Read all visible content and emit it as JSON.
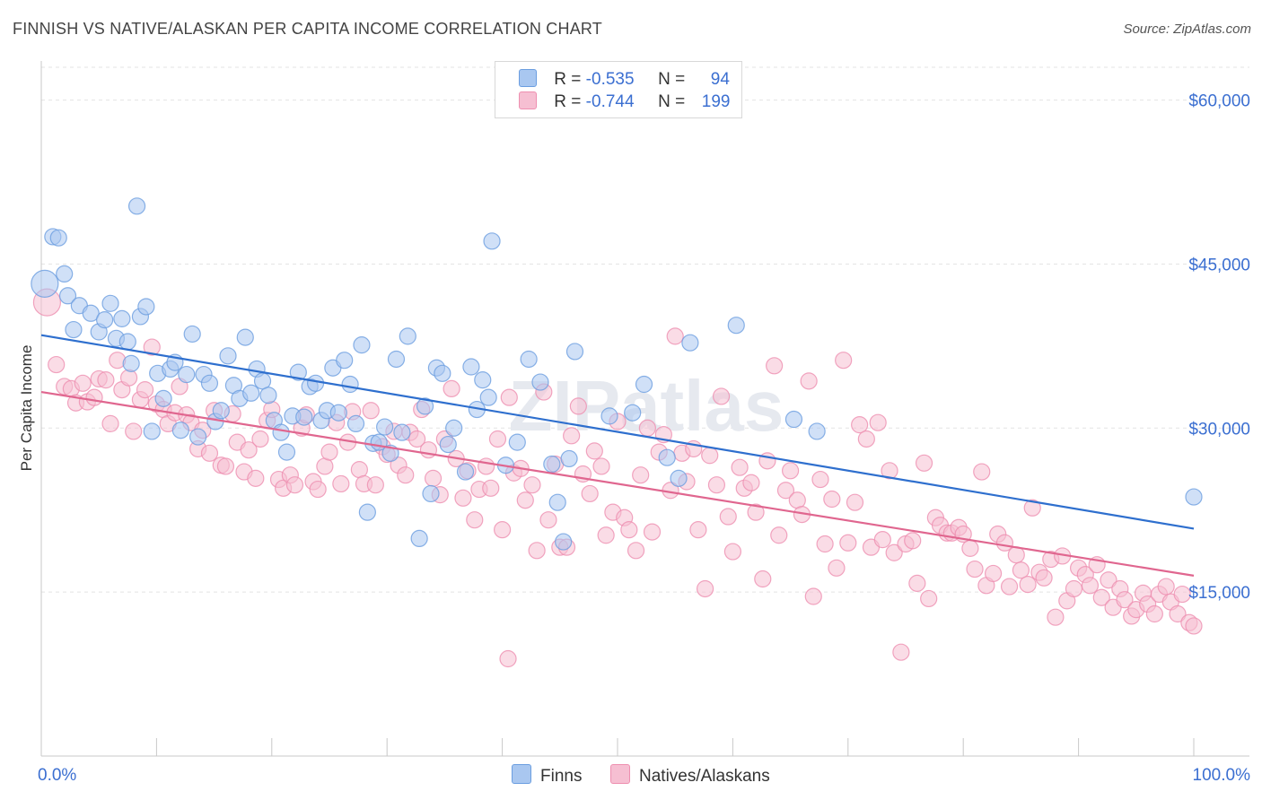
{
  "title": "FINNISH VS NATIVE/ALASKAN PER CAPITA INCOME CORRELATION CHART",
  "source": "Source: ZipAtlas.com",
  "watermark": "ZIPatlas",
  "legend": {
    "finns": {
      "r_label": "R =",
      "r_value": "-0.535",
      "n_label": "N =",
      "n_value": "94"
    },
    "natives": {
      "r_label": "R =",
      "r_value": "-0.744",
      "n_label": "N =",
      "n_value": "199"
    }
  },
  "colors": {
    "finns": "#6b9ee0",
    "finns_fill": "#a9c7f0",
    "finns_line": "#2e6fce",
    "natives": "#ee8fb0",
    "natives_fill": "#f6bfd2",
    "natives_line": "#e0668f",
    "tick_text": "#3b6fd1"
  },
  "chart_data": {
    "type": "scatter",
    "title": "FINNISH VS NATIVE/ALASKAN PER CAPITA INCOME CORRELATION CHART",
    "xlabel": "",
    "ylabel": "Per Capita Income",
    "xlim": [
      0,
      100
    ],
    "ylim": [
      0,
      63000
    ],
    "x_tick_labels": [
      "0.0%",
      "100.0%"
    ],
    "y_ticks": [
      15000,
      30000,
      45000,
      60000
    ],
    "y_tick_labels": [
      "$15,000",
      "$30,000",
      "$45,000",
      "$60,000"
    ],
    "grid": true,
    "legend_position": "bottom",
    "series": [
      {
        "name": "Finns",
        "trend": {
          "x0": 0,
          "y0": 38500,
          "x1": 100,
          "y1": 20800
        },
        "points": [
          [
            0.3,
            43200
          ],
          [
            1,
            47500
          ],
          [
            1.5,
            47400
          ],
          [
            2,
            44100
          ],
          [
            2.3,
            42100
          ],
          [
            2.8,
            39000
          ],
          [
            3.3,
            41200
          ],
          [
            4.3,
            40500
          ],
          [
            5,
            38800
          ],
          [
            5.5,
            39900
          ],
          [
            6,
            41400
          ],
          [
            6.5,
            38200
          ],
          [
            7,
            40000
          ],
          [
            7.5,
            37900
          ],
          [
            7.8,
            35900
          ],
          [
            8.3,
            50300
          ],
          [
            8.6,
            40200
          ],
          [
            9.1,
            41100
          ],
          [
            9.6,
            29700
          ],
          [
            10.1,
            35000
          ],
          [
            10.6,
            32700
          ],
          [
            11.2,
            35400
          ],
          [
            11.6,
            36000
          ],
          [
            12.1,
            29800
          ],
          [
            12.6,
            34900
          ],
          [
            13.1,
            38600
          ],
          [
            13.6,
            29200
          ],
          [
            14.1,
            34900
          ],
          [
            14.6,
            34100
          ],
          [
            15.1,
            30600
          ],
          [
            15.6,
            31600
          ],
          [
            16.2,
            36600
          ],
          [
            16.7,
            33900
          ],
          [
            17.2,
            32700
          ],
          [
            17.7,
            38300
          ],
          [
            18.2,
            33200
          ],
          [
            18.7,
            35400
          ],
          [
            19.2,
            34300
          ],
          [
            19.7,
            33000
          ],
          [
            20.2,
            30700
          ],
          [
            20.8,
            29600
          ],
          [
            21.3,
            27800
          ],
          [
            21.8,
            31100
          ],
          [
            22.3,
            35100
          ],
          [
            22.8,
            31000
          ],
          [
            23.3,
            33800
          ],
          [
            23.8,
            34100
          ],
          [
            24.3,
            30700
          ],
          [
            24.8,
            31600
          ],
          [
            25.3,
            35500
          ],
          [
            25.8,
            31400
          ],
          [
            26.3,
            36200
          ],
          [
            26.8,
            34000
          ],
          [
            27.3,
            30400
          ],
          [
            27.8,
            37600
          ],
          [
            28.3,
            22300
          ],
          [
            28.8,
            28600
          ],
          [
            29.3,
            28700
          ],
          [
            29.8,
            30100
          ],
          [
            30.3,
            27700
          ],
          [
            30.8,
            36300
          ],
          [
            31.3,
            29600
          ],
          [
            31.8,
            38400
          ],
          [
            32.8,
            19900
          ],
          [
            33.3,
            32000
          ],
          [
            33.8,
            24000
          ],
          [
            34.3,
            35500
          ],
          [
            34.8,
            35000
          ],
          [
            35.3,
            28500
          ],
          [
            35.8,
            30000
          ],
          [
            36.8,
            26000
          ],
          [
            37.3,
            35600
          ],
          [
            37.8,
            31700
          ],
          [
            38.3,
            34400
          ],
          [
            38.8,
            32800
          ],
          [
            39.1,
            47100
          ],
          [
            40.3,
            26600
          ],
          [
            41.3,
            28700
          ],
          [
            42.3,
            36300
          ],
          [
            43.3,
            34200
          ],
          [
            44.3,
            26700
          ],
          [
            44.8,
            23200
          ],
          [
            45.3,
            19600
          ],
          [
            45.8,
            27200
          ],
          [
            46.3,
            37000
          ],
          [
            49.3,
            31100
          ],
          [
            51.3,
            31400
          ],
          [
            52.3,
            34000
          ],
          [
            54.3,
            27300
          ],
          [
            55.3,
            25400
          ],
          [
            56.3,
            37800
          ],
          [
            60.3,
            39400
          ],
          [
            65.3,
            30800
          ],
          [
            67.3,
            29700
          ],
          [
            100,
            23700
          ]
        ]
      },
      {
        "name": "Natives/Alaskans",
        "trend": {
          "x0": 0,
          "y0": 33300,
          "x1": 100,
          "y1": 16500
        },
        "points": [
          [
            0.5,
            41500
          ],
          [
            1.3,
            35800
          ],
          [
            2,
            33800
          ],
          [
            2.6,
            33600
          ],
          [
            3,
            32300
          ],
          [
            3.6,
            34100
          ],
          [
            4,
            32400
          ],
          [
            4.6,
            32800
          ],
          [
            5,
            34500
          ],
          [
            5.6,
            34400
          ],
          [
            6,
            30400
          ],
          [
            6.6,
            36200
          ],
          [
            7,
            33500
          ],
          [
            7.6,
            34600
          ],
          [
            8,
            29700
          ],
          [
            8.6,
            32600
          ],
          [
            9,
            33500
          ],
          [
            9.6,
            37400
          ],
          [
            10,
            32200
          ],
          [
            10.6,
            31700
          ],
          [
            11,
            30400
          ],
          [
            11.6,
            31400
          ],
          [
            12,
            33800
          ],
          [
            12.6,
            31200
          ],
          [
            13,
            30500
          ],
          [
            13.6,
            28100
          ],
          [
            14,
            29800
          ],
          [
            14.6,
            27700
          ],
          [
            15,
            31600
          ],
          [
            15.6,
            26600
          ],
          [
            16,
            26500
          ],
          [
            16.6,
            31300
          ],
          [
            17,
            28700
          ],
          [
            17.6,
            26000
          ],
          [
            18,
            28000
          ],
          [
            18.6,
            25400
          ],
          [
            19,
            29000
          ],
          [
            19.6,
            30700
          ],
          [
            20,
            31700
          ],
          [
            20.6,
            25300
          ],
          [
            21,
            24500
          ],
          [
            21.6,
            25700
          ],
          [
            22,
            24800
          ],
          [
            22.6,
            30000
          ],
          [
            23,
            31200
          ],
          [
            23.6,
            25100
          ],
          [
            24,
            24400
          ],
          [
            24.6,
            26500
          ],
          [
            25,
            27800
          ],
          [
            25.6,
            30500
          ],
          [
            26,
            24900
          ],
          [
            26.6,
            28700
          ],
          [
            27,
            31500
          ],
          [
            27.6,
            26200
          ],
          [
            28,
            24900
          ],
          [
            28.6,
            31600
          ],
          [
            29,
            24800
          ],
          [
            29.6,
            28300
          ],
          [
            30,
            27600
          ],
          [
            30.6,
            29700
          ],
          [
            31,
            26600
          ],
          [
            31.6,
            25700
          ],
          [
            32,
            29600
          ],
          [
            32.6,
            29000
          ],
          [
            33,
            31700
          ],
          [
            33.6,
            28000
          ],
          [
            34,
            25400
          ],
          [
            34.6,
            23900
          ],
          [
            35,
            29000
          ],
          [
            35.6,
            33600
          ],
          [
            36,
            27200
          ],
          [
            36.6,
            23600
          ],
          [
            37,
            26100
          ],
          [
            37.6,
            21600
          ],
          [
            38,
            24400
          ],
          [
            38.6,
            26500
          ],
          [
            39,
            24500
          ],
          [
            39.6,
            29000
          ],
          [
            40,
            20700
          ],
          [
            40.6,
            32800
          ],
          [
            41,
            25900
          ],
          [
            41.6,
            26300
          ],
          [
            42,
            23400
          ],
          [
            42.6,
            24800
          ],
          [
            43,
            18800
          ],
          [
            43.6,
            33300
          ],
          [
            44,
            21600
          ],
          [
            44.6,
            26700
          ],
          [
            45,
            19100
          ],
          [
            45.6,
            19100
          ],
          [
            46,
            29300
          ],
          [
            46.6,
            32000
          ],
          [
            47,
            25800
          ],
          [
            47.6,
            24000
          ],
          [
            48,
            27900
          ],
          [
            48.6,
            26500
          ],
          [
            49,
            20200
          ],
          [
            49.6,
            22300
          ],
          [
            50,
            30600
          ],
          [
            50.6,
            21800
          ],
          [
            51,
            20700
          ],
          [
            51.6,
            18800
          ],
          [
            52,
            25700
          ],
          [
            52.6,
            30000
          ],
          [
            53,
            20500
          ],
          [
            53.6,
            27800
          ],
          [
            54,
            29400
          ],
          [
            54.6,
            24300
          ],
          [
            55,
            38400
          ],
          [
            55.6,
            27700
          ],
          [
            56,
            25100
          ],
          [
            56.6,
            28100
          ],
          [
            57,
            20700
          ],
          [
            57.6,
            15300
          ],
          [
            58,
            27500
          ],
          [
            58.6,
            24800
          ],
          [
            59,
            32900
          ],
          [
            59.6,
            21900
          ],
          [
            60,
            18700
          ],
          [
            60.6,
            26400
          ],
          [
            61,
            24500
          ],
          [
            61.6,
            25000
          ],
          [
            62,
            22300
          ],
          [
            62.6,
            16200
          ],
          [
            63,
            27000
          ],
          [
            63.6,
            35700
          ],
          [
            64,
            20200
          ],
          [
            64.6,
            24300
          ],
          [
            65,
            26100
          ],
          [
            65.6,
            23400
          ],
          [
            66,
            22100
          ],
          [
            66.6,
            34300
          ],
          [
            67,
            14600
          ],
          [
            67.6,
            25300
          ],
          [
            68,
            19400
          ],
          [
            68.6,
            23500
          ],
          [
            69,
            17200
          ],
          [
            69.6,
            36200
          ],
          [
            70,
            19500
          ],
          [
            70.6,
            23200
          ],
          [
            71,
            30300
          ],
          [
            71.6,
            29000
          ],
          [
            72,
            19100
          ],
          [
            72.6,
            30500
          ],
          [
            73,
            19800
          ],
          [
            73.6,
            26100
          ],
          [
            74,
            18600
          ],
          [
            74.6,
            9500
          ],
          [
            75,
            19400
          ],
          [
            75.6,
            19700
          ],
          [
            76,
            15800
          ],
          [
            76.6,
            26800
          ],
          [
            77,
            14400
          ],
          [
            77.6,
            21800
          ],
          [
            78,
            21100
          ],
          [
            78.6,
            20400
          ],
          [
            79,
            20400
          ],
          [
            79.6,
            20900
          ],
          [
            80,
            20300
          ],
          [
            80.6,
            19000
          ],
          [
            81,
            17100
          ],
          [
            81.6,
            26000
          ],
          [
            82,
            15600
          ],
          [
            82.6,
            16700
          ],
          [
            83,
            20300
          ],
          [
            83.6,
            19500
          ],
          [
            84,
            15500
          ],
          [
            84.6,
            18400
          ],
          [
            85,
            17000
          ],
          [
            85.6,
            15700
          ],
          [
            86,
            22700
          ],
          [
            86.6,
            16800
          ],
          [
            87,
            16300
          ],
          [
            87.6,
            18000
          ],
          [
            88,
            12700
          ],
          [
            88.6,
            18300
          ],
          [
            89,
            14200
          ],
          [
            89.6,
            15300
          ],
          [
            90,
            17200
          ],
          [
            90.6,
            16600
          ],
          [
            91,
            15600
          ],
          [
            91.6,
            17500
          ],
          [
            92,
            14500
          ],
          [
            92.6,
            16100
          ],
          [
            93,
            13600
          ],
          [
            93.6,
            15300
          ],
          [
            94,
            14300
          ],
          [
            94.6,
            12800
          ],
          [
            95,
            13400
          ],
          [
            95.6,
            14900
          ],
          [
            96,
            13900
          ],
          [
            96.6,
            13000
          ],
          [
            97,
            14800
          ],
          [
            97.6,
            15500
          ],
          [
            98,
            14100
          ],
          [
            98.6,
            13000
          ],
          [
            99,
            14800
          ],
          [
            99.6,
            12200
          ],
          [
            100,
            11900
          ],
          [
            40.5,
            8900
          ]
        ]
      }
    ]
  }
}
